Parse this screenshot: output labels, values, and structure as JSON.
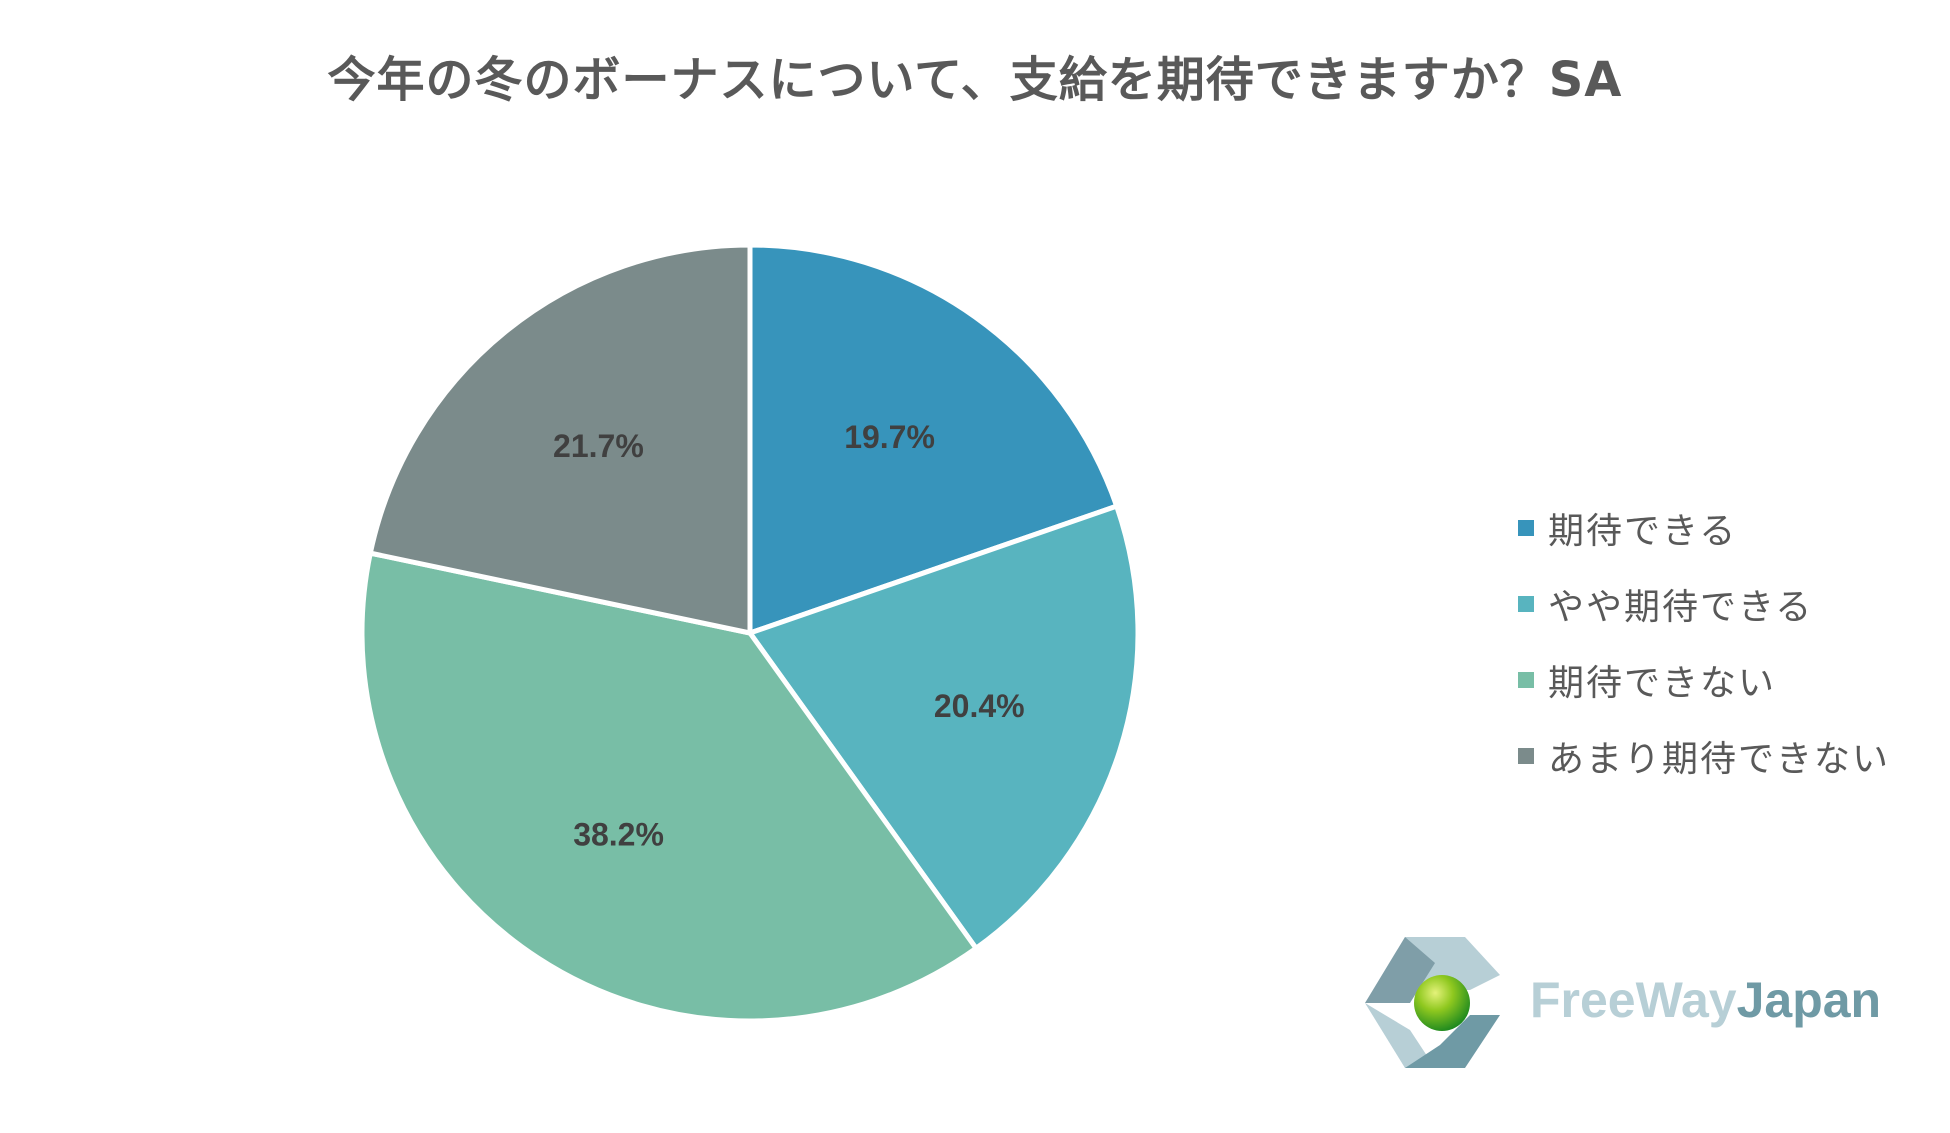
{
  "chart_data": {
    "type": "pie",
    "title": "今年の冬のボーナスについて、支給を期待できますか？SA",
    "categories": [
      "期待できる",
      "やや期待できる",
      "期待できない",
      "あまり期待できない"
    ],
    "values": [
      19.7,
      20.4,
      38.2,
      21.7
    ],
    "labels": [
      "19.7%",
      "20.4%",
      "38.2%",
      "21.7%"
    ],
    "colors": [
      "#3794bb",
      "#58b4bf",
      "#78bea6",
      "#7b8b8b"
    ],
    "start_angle": "12 o'clock",
    "direction": "clockwise",
    "legend_position": "right"
  },
  "logo": {
    "text_part1": "FreeWay",
    "text_part2": "Japan"
  }
}
